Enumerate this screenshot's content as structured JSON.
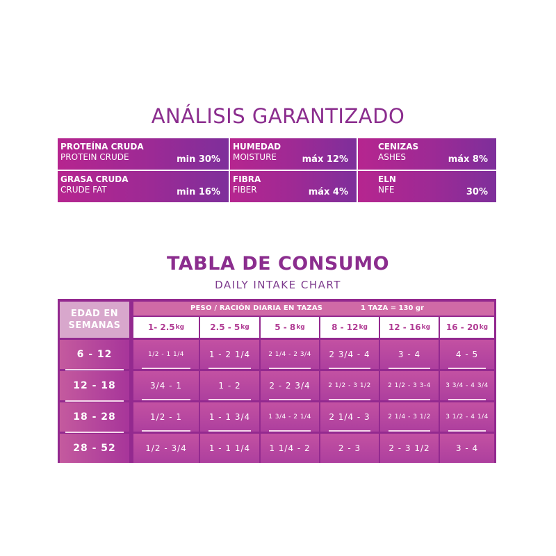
{
  "analysis": {
    "title": "ANÁLISIS GARANTIZADO",
    "items": [
      {
        "es": "PROTEÍNA CRUDA",
        "en": "PROTEIN CRUDE",
        "value": "min 30%"
      },
      {
        "es": "HUMEDAD",
        "en": "MOISTURE",
        "value": "máx 12%"
      },
      {
        "es": "CENIZAS",
        "en": "ASHES",
        "value": "máx 8%"
      },
      {
        "es": "GRASA CRUDA",
        "en": "CRUDE FAT",
        "value": "min 16%"
      },
      {
        "es": "FIBRA",
        "en": "FIBER",
        "value": "máx 4%"
      },
      {
        "es": "ELN",
        "en": "NFE",
        "value": "30%"
      }
    ]
  },
  "intake": {
    "title": "TABLA DE CONSUMO",
    "subtitle": "DAILY INTAKE CHART",
    "age_header_line1": "EDAD EN",
    "age_header_line2": "SEMANAS",
    "weight_header": "PESO / RACIÓN DIARIA EN TAZAS",
    "cup_note": "1 TAZA = 130 gr",
    "weights": [
      {
        "range": "1- 2.5",
        "unit": "kg"
      },
      {
        "range": "2.5 - 5",
        "unit": "kg"
      },
      {
        "range": "5 - 8",
        "unit": "kg"
      },
      {
        "range": "8 - 12",
        "unit": "kg"
      },
      {
        "range": "12 - 16",
        "unit": "kg"
      },
      {
        "range": "16 - 20",
        "unit": "kg"
      }
    ],
    "ages": [
      "6 - 12",
      "12 - 18",
      "18 - 28",
      "28 - 52"
    ],
    "rows": [
      [
        "1/2 - 1 1/4",
        "1 - 2 1/4",
        "2 1/4 - 2 3/4",
        "2 3/4 - 4",
        "3 - 4",
        "4 - 5"
      ],
      [
        "3/4 - 1",
        "1 - 2",
        "2 - 2 3/4",
        "2 1/2 - 3 1/2",
        "2 1/2 - 3 3-4",
        "3 3/4 - 4 3/4"
      ],
      [
        "1/2 - 1",
        "1 - 1 3/4",
        "1 3/4 - 2 1/4",
        "2 1/4 - 3",
        "2 1/4 - 3 1/2",
        "3 1/2 - 4 1/4"
      ],
      [
        "1/2 - 3/4",
        "1 - 1 1/4",
        "1 1/4 - 2",
        "2 - 3",
        "2 - 3 1/2",
        "3 - 4"
      ]
    ]
  }
}
